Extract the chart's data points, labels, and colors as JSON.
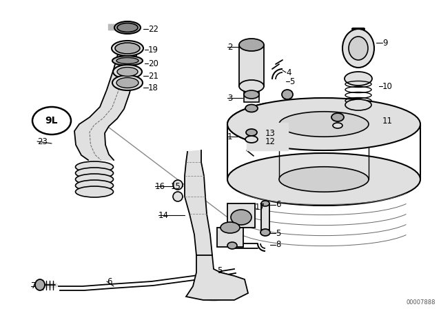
{
  "bg": "#ffffff",
  "lc": "#000000",
  "fig_w": 6.4,
  "fig_h": 4.48,
  "dpi": 100,
  "watermark": "00007888"
}
